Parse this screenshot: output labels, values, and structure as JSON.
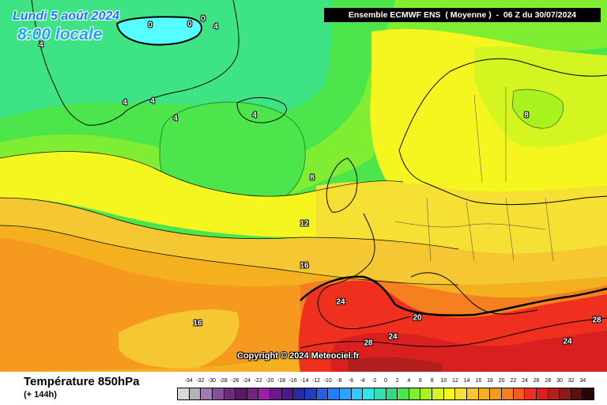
{
  "header": {
    "date": "Lundi 5 août 2024",
    "time": "8:00 locale",
    "model_banner": "Ensemble ECMWF ENS  ( Moyenne )  -  06 Z du 30/07/2024"
  },
  "copyright": "Copyright © 2024 Meteociel.fr",
  "legend": {
    "title": "Température 850hPa",
    "subtitle": "(+ 144h)",
    "ticks": [
      "-34",
      "-32",
      "-30",
      "-28",
      "-26",
      "-24",
      "-22",
      "-20",
      "-18",
      "-16",
      "-14",
      "-12",
      "-10",
      "-8",
      "-6",
      "-4",
      "-2",
      "0",
      "2",
      "4",
      "6",
      "8",
      "10",
      "12",
      "14",
      "16",
      "18",
      "20",
      "22",
      "24",
      "26",
      "28",
      "30",
      "32",
      "34"
    ],
    "colors": [
      "#d9d9d9",
      "#b3b3b3",
      "#a07cb5",
      "#8a4f9a",
      "#6b2d7a",
      "#5a1a63",
      "#7a1f8a",
      "#9b1fa8",
      "#6a1a8c",
      "#4b1a8c",
      "#2a2a9a",
      "#1f3fbf",
      "#2a5fdf",
      "#1f7fff",
      "#2aa5ff",
      "#33c9ff",
      "#33e6e6",
      "#33e0b0",
      "#33d980",
      "#4ce64c",
      "#7fee33",
      "#a8f21f",
      "#d4f51f",
      "#f5f51f",
      "#f5e033",
      "#f5c833",
      "#f5b01f",
      "#f59a1f",
      "#f5801f",
      "#f55a1f",
      "#f0301f",
      "#d91f1f",
      "#b31f1f",
      "#8c1a1a",
      "#5c0f0f",
      "#2a0505"
    ]
  },
  "map": {
    "colors": {
      "sea_green": "#33e0b0",
      "green": "#4ce64c",
      "light_green": "#7fee33",
      "lime": "#a8f21f",
      "yellow_green": "#d4f51f",
      "yellow": "#f5f51f",
      "pale_yellow": "#f5e033",
      "gold": "#f5c833",
      "orange": "#f5b01f",
      "dark_orange": "#f59a1f",
      "red_orange": "#f5801f",
      "red": "#f0301f",
      "dark_red": "#d91f1f",
      "cyan_ice": "#55ffff"
    },
    "contour_labels": [
      {
        "text": "0"
      },
      {
        "text": "0"
      },
      {
        "text": "0"
      },
      {
        "text": "4"
      },
      {
        "text": "4"
      },
      {
        "text": "4"
      },
      {
        "text": "4"
      },
      {
        "text": "4"
      },
      {
        "text": "4"
      },
      {
        "text": "8"
      },
      {
        "text": "8"
      },
      {
        "text": "12"
      },
      {
        "text": "16"
      },
      {
        "text": "16"
      },
      {
        "text": "20"
      },
      {
        "text": "24"
      },
      {
        "text": "24"
      },
      {
        "text": "24"
      },
      {
        "text": "28"
      },
      {
        "text": "28"
      }
    ]
  }
}
